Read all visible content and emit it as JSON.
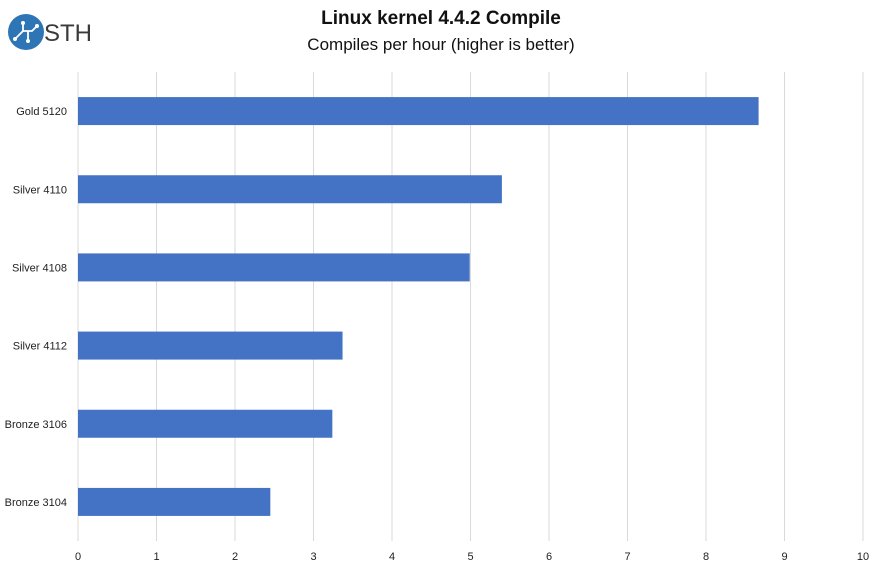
{
  "logo": {
    "text": "STH",
    "icon": "sth-circuit-logo-icon",
    "color": "#2e75b6"
  },
  "chart_data": {
    "type": "bar",
    "orientation": "horizontal",
    "title": "Linux kernel 4.4.2 Compile",
    "subtitle": "Compiles per hour (higher is better)",
    "categories": [
      "Gold 5120",
      "Silver 4110",
      "Silver 4108",
      "Silver 4112",
      "Bronze 3106",
      "Bronze 3104"
    ],
    "values": [
      8.67,
      5.4,
      4.99,
      3.37,
      3.24,
      2.45
    ],
    "xlim": [
      0,
      10
    ],
    "xticks": [
      0,
      1,
      2,
      3,
      4,
      5,
      6,
      7,
      8,
      9,
      10
    ],
    "xlabel": "",
    "ylabel": "",
    "grid": "vertical",
    "bar_color": "#4472c4",
    "grid_color": "#d9d9d9"
  }
}
